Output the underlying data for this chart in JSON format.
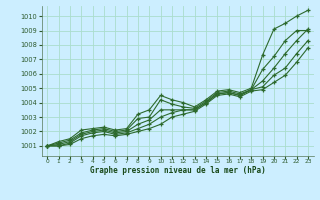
{
  "title": "Graphe pression niveau de la mer (hPa)",
  "bg_color": "#cceeff",
  "grid_color": "#aaddcc",
  "line_color": "#2d6a2d",
  "xlim": [
    -0.5,
    23.5
  ],
  "ylim": [
    1000.3,
    1010.7
  ],
  "yticks": [
    1001,
    1002,
    1003,
    1004,
    1005,
    1006,
    1007,
    1008,
    1009,
    1010
  ],
  "xticks": [
    0,
    1,
    2,
    3,
    4,
    5,
    6,
    7,
    8,
    9,
    10,
    11,
    12,
    13,
    14,
    15,
    16,
    17,
    18,
    19,
    20,
    21,
    22,
    23
  ],
  "series": [
    {
      "x": [
        0,
        1,
        2,
        3,
        4,
        5,
        6,
        7,
        8,
        9,
        10,
        11,
        12,
        13,
        14,
        15,
        16,
        17,
        18,
        19,
        20,
        21,
        22,
        23
      ],
      "y": [
        1001.0,
        1001.3,
        1001.5,
        1002.1,
        1002.2,
        1002.3,
        1002.1,
        1002.2,
        1003.2,
        1003.5,
        1004.5,
        1004.2,
        1004.0,
        1003.7,
        1004.2,
        1004.8,
        1004.9,
        1004.7,
        1005.0,
        1007.3,
        1009.1,
        1009.5,
        1010.0,
        1010.4
      ]
    },
    {
      "x": [
        0,
        1,
        2,
        3,
        4,
        5,
        6,
        7,
        8,
        9,
        10,
        11,
        12,
        13,
        14,
        15,
        16,
        17,
        18,
        19,
        20,
        21,
        22,
        23
      ],
      "y": [
        1001.0,
        1001.2,
        1001.4,
        1001.9,
        1002.1,
        1002.2,
        1002.0,
        1002.1,
        1002.9,
        1003.0,
        1004.2,
        1003.9,
        1003.7,
        1003.6,
        1004.1,
        1004.7,
        1004.8,
        1004.6,
        1004.9,
        1006.3,
        1007.2,
        1008.3,
        1009.0,
        1009.0
      ]
    },
    {
      "x": [
        0,
        1,
        2,
        3,
        4,
        5,
        6,
        7,
        8,
        9,
        10,
        11,
        12,
        13,
        14,
        15,
        16,
        17,
        18,
        19,
        20,
        21,
        22,
        23
      ],
      "y": [
        1001.0,
        1001.1,
        1001.3,
        1001.8,
        1002.0,
        1002.1,
        1001.9,
        1002.0,
        1002.5,
        1002.8,
        1003.5,
        1003.5,
        1003.5,
        1003.5,
        1004.0,
        1004.6,
        1004.7,
        1004.5,
        1004.9,
        1005.5,
        1006.4,
        1007.4,
        1008.3,
        1009.1
      ]
    },
    {
      "x": [
        0,
        1,
        2,
        3,
        4,
        5,
        6,
        7,
        8,
        9,
        10,
        11,
        12,
        13,
        14,
        15,
        16,
        17,
        18,
        19,
        20,
        21,
        22,
        23
      ],
      "y": [
        1001.0,
        1001.0,
        1001.2,
        1001.7,
        1001.9,
        1002.0,
        1001.8,
        1001.9,
        1002.2,
        1002.5,
        1003.0,
        1003.3,
        1003.5,
        1003.5,
        1004.0,
        1004.6,
        1004.7,
        1004.5,
        1004.9,
        1005.1,
        1005.9,
        1006.4,
        1007.4,
        1008.3
      ]
    },
    {
      "x": [
        0,
        1,
        2,
        3,
        4,
        5,
        6,
        7,
        8,
        9,
        10,
        11,
        12,
        13,
        14,
        15,
        16,
        17,
        18,
        19,
        20,
        21,
        22,
        23
      ],
      "y": [
        1001.0,
        1001.0,
        1001.1,
        1001.5,
        1001.7,
        1001.8,
        1001.7,
        1001.8,
        1002.0,
        1002.2,
        1002.5,
        1003.0,
        1003.2,
        1003.4,
        1003.9,
        1004.5,
        1004.6,
        1004.4,
        1004.8,
        1004.9,
        1005.4,
        1005.9,
        1006.8,
        1007.8
      ]
    }
  ]
}
